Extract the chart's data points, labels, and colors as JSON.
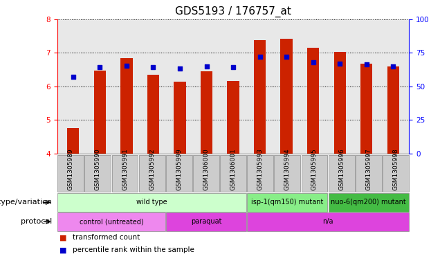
{
  "title": "GDS5193 / 176757_at",
  "samples": [
    "GSM1305989",
    "GSM1305990",
    "GSM1305991",
    "GSM1305992",
    "GSM1305999",
    "GSM1306000",
    "GSM1306001",
    "GSM1305993",
    "GSM1305994",
    "GSM1305995",
    "GSM1305996",
    "GSM1305997",
    "GSM1305998"
  ],
  "bar_values": [
    4.77,
    6.47,
    6.83,
    6.35,
    6.13,
    6.45,
    6.17,
    7.38,
    7.42,
    7.14,
    7.02,
    6.67,
    6.6
  ],
  "dot_values": [
    6.28,
    6.57,
    6.62,
    6.57,
    6.52,
    6.6,
    6.57,
    6.87,
    6.87,
    6.72,
    6.67,
    6.65,
    6.6
  ],
  "ylim_left": [
    4,
    8
  ],
  "ylim_right": [
    0,
    100
  ],
  "yticks_left": [
    4,
    5,
    6,
    7,
    8
  ],
  "yticks_right": [
    0,
    25,
    50,
    75,
    100
  ],
  "bar_color": "#cc2200",
  "dot_color": "#0000cc",
  "plot_bg_color": "#e8e8e8",
  "geno_data": [
    {
      "label": "wild type",
      "start": 0,
      "end": 6,
      "color": "#ccffcc"
    },
    {
      "label": "isp-1(qm150) mutant",
      "start": 7,
      "end": 9,
      "color": "#88ee88"
    },
    {
      "label": "nuo-6(qm200) mutant",
      "start": 10,
      "end": 12,
      "color": "#44bb44"
    }
  ],
  "proto_data": [
    {
      "label": "control (untreated)",
      "start": 0,
      "end": 3,
      "color": "#ee88ee"
    },
    {
      "label": "paraquat",
      "start": 4,
      "end": 6,
      "color": "#dd44dd"
    },
    {
      "label": "n/a",
      "start": 7,
      "end": 12,
      "color": "#dd44dd"
    }
  ],
  "legend_items": [
    {
      "color": "#cc2200",
      "label": "transformed count"
    },
    {
      "color": "#0000cc",
      "label": "percentile rank within the sample"
    }
  ],
  "genotype_label": "genotype/variation",
  "protocol_label": "protocol",
  "title_fontsize": 11,
  "tick_fontsize": 7.5,
  "sample_fontsize": 6.5,
  "row_label_fontsize": 8,
  "row_text_fontsize": 7,
  "legend_fontsize": 7.5
}
